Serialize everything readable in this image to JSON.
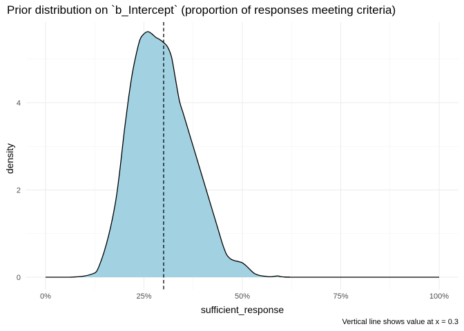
{
  "chart_data": {
    "type": "area",
    "title": "Prior distribution on `b_Intercept` (proportion of responses meeting criteria)",
    "xlabel": "sufficient_response",
    "ylabel": "density",
    "caption": "Vertical line shows value at x = 0.3",
    "xlim": [
      0,
      1
    ],
    "ylim": [
      0,
      5.6
    ],
    "x_ticks": [
      {
        "value": 0,
        "label": "0%"
      },
      {
        "value": 0.25,
        "label": "25%"
      },
      {
        "value": 0.5,
        "label": "50%"
      },
      {
        "value": 0.75,
        "label": "75%"
      },
      {
        "value": 1,
        "label": "100%"
      }
    ],
    "y_ticks": [
      {
        "value": 0,
        "label": "0"
      },
      {
        "value": 2,
        "label": "2"
      },
      {
        "value": 4,
        "label": "4"
      }
    ],
    "grid": true,
    "fill_color": "#a2d2e2",
    "line_color": "#000000",
    "reference_line": {
      "x": 0.3,
      "style": "dashed"
    },
    "series": [
      {
        "x": [
          0,
          0.06,
          0.08,
          0.1,
          0.12,
          0.13,
          0.14,
          0.15,
          0.16,
          0.17,
          0.18,
          0.19,
          0.2,
          0.21,
          0.22,
          0.23,
          0.24,
          0.25,
          0.26,
          0.27,
          0.28,
          0.29,
          0.3,
          0.31,
          0.32,
          0.33,
          0.34,
          0.35,
          0.36,
          0.37,
          0.38,
          0.39,
          0.4,
          0.41,
          0.42,
          0.43,
          0.44,
          0.45,
          0.46,
          0.47,
          0.48,
          0.49,
          0.5,
          0.51,
          0.52,
          0.53,
          0.54,
          0.55,
          0.56,
          0.57,
          0.58,
          0.59,
          0.6,
          0.62,
          0.64,
          1.0
        ],
        "y": [
          0,
          0,
          0.01,
          0.03,
          0.08,
          0.14,
          0.35,
          0.62,
          0.95,
          1.35,
          1.85,
          2.55,
          3.35,
          4.05,
          4.65,
          5.1,
          5.45,
          5.58,
          5.63,
          5.58,
          5.5,
          5.45,
          5.38,
          5.28,
          5.05,
          4.55,
          4.05,
          3.75,
          3.45,
          3.15,
          2.85,
          2.55,
          2.25,
          1.95,
          1.65,
          1.35,
          1.05,
          0.75,
          0.52,
          0.42,
          0.38,
          0.36,
          0.33,
          0.26,
          0.17,
          0.09,
          0.05,
          0.03,
          0.02,
          0.01,
          0.02,
          0.03,
          0.01,
          0.003,
          0,
          0
        ]
      }
    ]
  }
}
